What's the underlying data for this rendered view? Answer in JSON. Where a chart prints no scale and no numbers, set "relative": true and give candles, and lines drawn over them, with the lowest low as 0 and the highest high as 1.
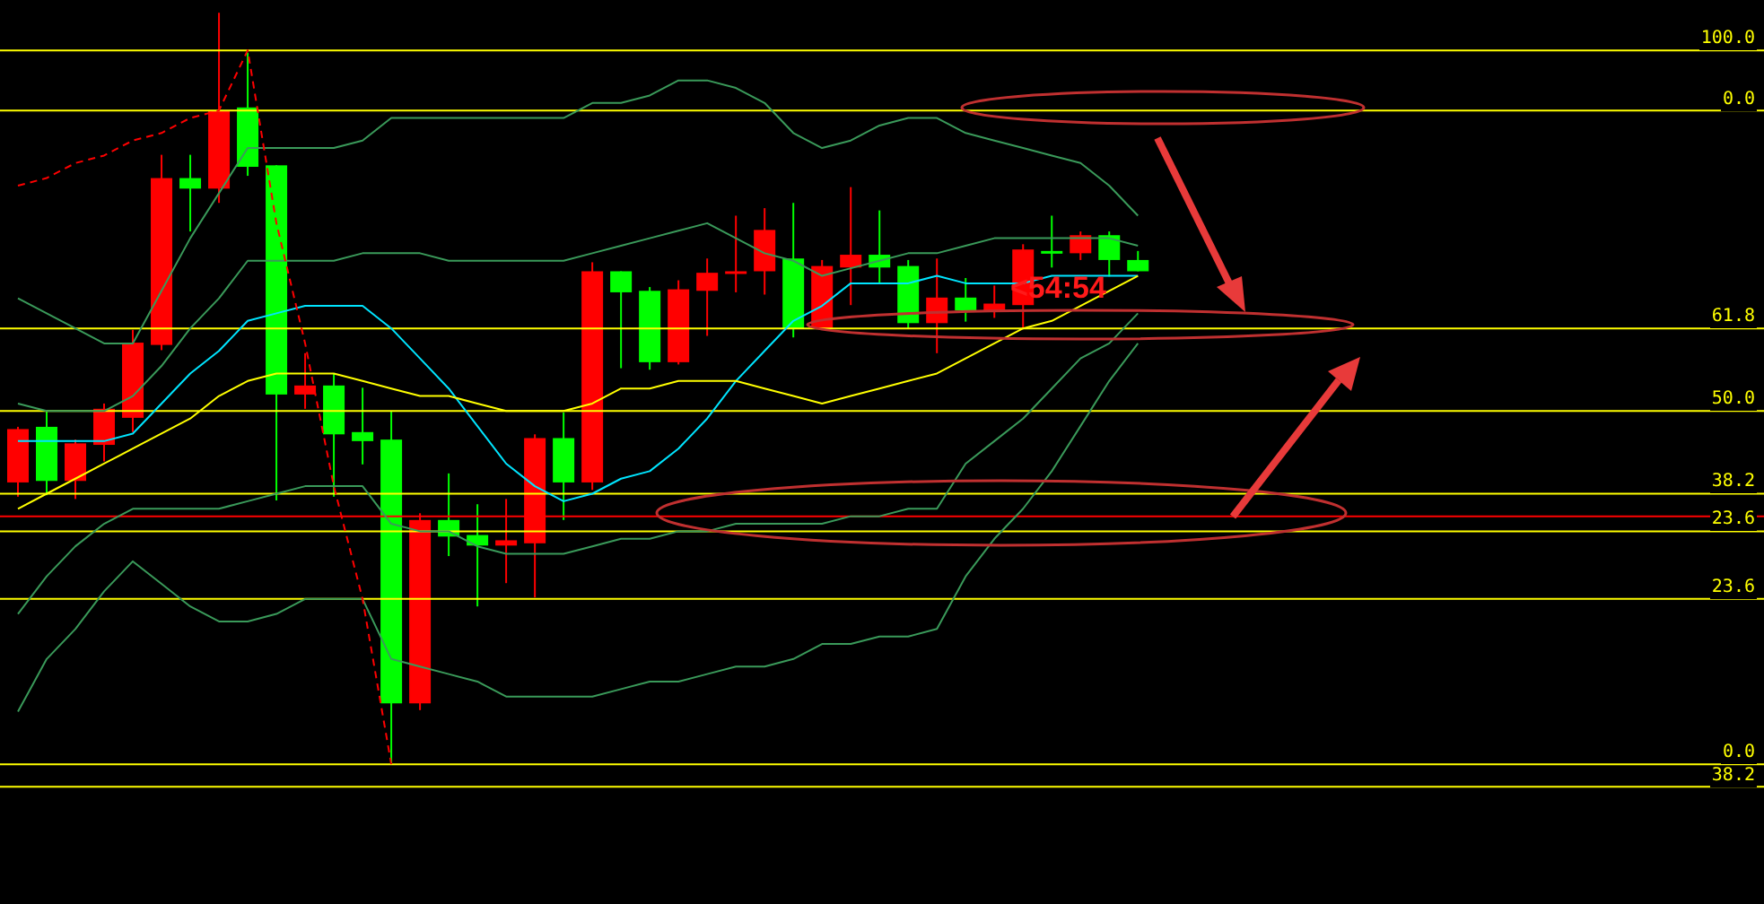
{
  "chart_data": {
    "type": "candlestick",
    "relative": true,
    "categories": [
      null,
      null,
      null,
      null,
      null,
      null,
      null,
      null,
      null,
      null,
      null,
      null,
      null,
      null,
      null,
      null,
      null,
      null,
      null,
      null,
      null,
      null,
      null,
      null,
      null,
      null,
      null,
      null,
      null,
      null,
      null,
      null,
      null,
      null,
      null,
      null,
      null,
      null,
      null,
      null
    ],
    "ohlc": [
      [
        0.375,
        0.449,
        0.356,
        0.446
      ],
      [
        0.449,
        0.47,
        0.358,
        0.377
      ],
      [
        0.377,
        0.432,
        0.353,
        0.427
      ],
      [
        0.425,
        0.48,
        0.403,
        0.473
      ],
      [
        0.461,
        0.578,
        0.442,
        0.561
      ],
      [
        0.558,
        0.811,
        0.551,
        0.78
      ],
      [
        0.78,
        0.811,
        0.709,
        0.766
      ],
      [
        0.766,
        1.0,
        0.747,
        0.869
      ],
      [
        0.874,
        0.947,
        0.783,
        0.795
      ],
      [
        0.797,
        0.797,
        0.351,
        0.492
      ],
      [
        0.492,
        0.547,
        0.473,
        0.504
      ],
      [
        0.504,
        0.52,
        0.356,
        0.439
      ],
      [
        0.442,
        0.501,
        0.399,
        0.43
      ],
      [
        0.432,
        0.47,
        0.0,
        0.081
      ],
      [
        0.081,
        0.334,
        0.072,
        0.325
      ],
      [
        0.325,
        0.387,
        0.277,
        0.303
      ],
      [
        0.305,
        0.346,
        0.21,
        0.291
      ],
      [
        0.291,
        0.353,
        0.241,
        0.298
      ],
      [
        0.294,
        0.439,
        0.222,
        0.434
      ],
      [
        0.434,
        0.468,
        0.325,
        0.375
      ],
      [
        0.375,
        0.668,
        0.365,
        0.656
      ],
      [
        0.656,
        0.656,
        0.527,
        0.628
      ],
      [
        0.63,
        0.635,
        0.525,
        0.535
      ],
      [
        0.535,
        0.644,
        0.532,
        0.632
      ],
      [
        0.63,
        0.673,
        0.57,
        0.654
      ],
      [
        0.654,
        0.73,
        0.628,
        0.656
      ],
      [
        0.656,
        0.74,
        0.625,
        0.711
      ],
      [
        0.673,
        0.747,
        0.568,
        0.58
      ],
      [
        0.58,
        0.671,
        0.58,
        0.663
      ],
      [
        0.661,
        0.768,
        0.611,
        0.678
      ],
      [
        0.678,
        0.737,
        0.64,
        0.661
      ],
      [
        0.663,
        0.671,
        0.58,
        0.587
      ],
      [
        0.587,
        0.673,
        0.547,
        0.621
      ],
      [
        0.621,
        0.647,
        0.589,
        0.604
      ],
      [
        0.604,
        0.637,
        0.594,
        0.613
      ],
      [
        0.611,
        0.692,
        0.58,
        0.685
      ],
      [
        0.683,
        0.73,
        0.661,
        0.68
      ],
      [
        0.68,
        0.709,
        0.671,
        0.704
      ],
      [
        0.704,
        0.709,
        0.649,
        0.671
      ],
      [
        0.671,
        0.683,
        0.656,
        0.656
      ]
    ],
    "colors": [
      "#ff0000",
      "#00ff00",
      "#ff0000",
      "#ff0000",
      "#ff0000",
      "#ff0000",
      "#00ff00",
      "#ff0000",
      "#00ff00",
      "#00ff00",
      "#ff0000",
      "#00ff00",
      "#00ff00",
      "#00ff00",
      "#ff0000",
      "#00ff00",
      "#00ff00",
      "#ff0000",
      "#ff0000",
      "#00ff00",
      "#ff0000",
      "#00ff00",
      "#00ff00",
      "#ff0000",
      "#ff0000",
      "#ff0000",
      "#ff0000",
      "#00ff00",
      "#ff0000",
      "#ff0000",
      "#00ff00",
      "#00ff00",
      "#ff0000",
      "#00ff00",
      "#ff0000",
      "#ff0000",
      "#00ff00",
      "#ff0000",
      "#00ff00",
      "#00ff00"
    ],
    "series": [
      {
        "type": "line",
        "color": "#3a9a5a",
        "values": [
          0.62,
          0.6,
          0.58,
          0.56,
          0.56,
          0.63,
          0.7,
          0.76,
          0.82,
          0.82,
          0.82,
          0.82,
          0.83,
          0.86,
          0.86,
          0.86,
          0.86,
          0.86,
          0.86,
          0.86,
          0.88,
          0.88,
          0.89,
          0.91,
          0.91,
          0.9,
          0.88,
          0.84,
          0.82,
          0.83,
          0.85,
          0.86,
          0.86,
          0.84,
          0.83,
          0.82,
          0.81,
          0.8,
          0.77,
          0.73
        ]
      },
      {
        "type": "line",
        "color": "#3a9a5a",
        "values": [
          0.48,
          0.47,
          0.47,
          0.47,
          0.49,
          0.53,
          0.58,
          0.62,
          0.67,
          0.67,
          0.67,
          0.67,
          0.68,
          0.68,
          0.68,
          0.67,
          0.67,
          0.67,
          0.67,
          0.67,
          0.68,
          0.69,
          0.7,
          0.71,
          0.72,
          0.7,
          0.68,
          0.67,
          0.65,
          0.66,
          0.67,
          0.68,
          0.68,
          0.69,
          0.7,
          0.7,
          0.7,
          0.7,
          0.7,
          0.69
        ]
      },
      {
        "type": "line",
        "color": "#00e5ff",
        "values": [
          0.43,
          0.43,
          0.43,
          0.43,
          0.44,
          0.48,
          0.52,
          0.55,
          0.59,
          0.6,
          0.61,
          0.61,
          0.61,
          0.58,
          0.54,
          0.5,
          0.45,
          0.4,
          0.37,
          0.35,
          0.36,
          0.38,
          0.39,
          0.42,
          0.46,
          0.51,
          0.55,
          0.59,
          0.61,
          0.64,
          0.64,
          0.64,
          0.65,
          0.64,
          0.64,
          0.64,
          0.65,
          0.65,
          0.65,
          0.65
        ]
      },
      {
        "type": "line",
        "color": "#ffff00",
        "values": [
          0.34,
          0.36,
          0.38,
          0.4,
          0.42,
          0.44,
          0.46,
          0.49,
          0.51,
          0.52,
          0.52,
          0.52,
          0.51,
          0.5,
          0.49,
          0.49,
          0.48,
          0.47,
          0.47,
          0.47,
          0.48,
          0.5,
          0.5,
          0.51,
          0.51,
          0.51,
          0.5,
          0.49,
          0.48,
          0.49,
          0.5,
          0.51,
          0.52,
          0.54,
          0.56,
          0.58,
          0.59,
          0.61,
          0.63,
          0.65
        ]
      },
      {
        "type": "line",
        "color": "#3a9a5a",
        "values": [
          0.2,
          0.25,
          0.29,
          0.32,
          0.34,
          0.34,
          0.34,
          0.34,
          0.35,
          0.36,
          0.37,
          0.37,
          0.37,
          0.32,
          0.31,
          0.31,
          0.29,
          0.28,
          0.28,
          0.28,
          0.29,
          0.3,
          0.3,
          0.31,
          0.31,
          0.32,
          0.32,
          0.32,
          0.32,
          0.33,
          0.33,
          0.34,
          0.34,
          0.4,
          0.43,
          0.46,
          0.5,
          0.54,
          0.56,
          0.6
        ]
      },
      {
        "type": "line",
        "color": "#3a9a5a",
        "values": [
          0.07,
          0.14,
          0.18,
          0.23,
          0.27,
          0.24,
          0.21,
          0.19,
          0.19,
          0.2,
          0.22,
          0.22,
          0.22,
          0.14,
          0.13,
          0.12,
          0.11,
          0.09,
          0.09,
          0.09,
          0.09,
          0.1,
          0.11,
          0.11,
          0.12,
          0.13,
          0.13,
          0.14,
          0.16,
          0.16,
          0.17,
          0.17,
          0.18,
          0.25,
          0.3,
          0.34,
          0.39,
          0.45,
          0.51,
          0.56
        ]
      },
      {
        "type": "line",
        "color": "#ff0000",
        "line_style": "dashed",
        "values": [
          0.77,
          0.78,
          0.8,
          0.81,
          0.83,
          0.84,
          0.86,
          0.87,
          0.95,
          0.72,
          0.56,
          0.37,
          0.22,
          0,
          null,
          null,
          null,
          null,
          null,
          null,
          null,
          null,
          null,
          null,
          null,
          null,
          null,
          null,
          null,
          null,
          null,
          null,
          null,
          null,
          null,
          null,
          null,
          null,
          null,
          null
        ]
      }
    ],
    "ref_lines": [
      {
        "axis": "y",
        "value": 0.95,
        "color": "#ffff00"
      },
      {
        "axis": "y",
        "value": 0.87,
        "color": "#ffff00"
      },
      {
        "axis": "y",
        "value": 0.58,
        "color": "#ffff00"
      },
      {
        "axis": "y",
        "value": 0.47,
        "color": "#ffff00"
      },
      {
        "axis": "y",
        "value": 0.36,
        "color": "#ffff00"
      },
      {
        "axis": "y",
        "value": 0.33,
        "color": "#ff0000"
      },
      {
        "axis": "y",
        "value": 0.31,
        "color": "#ffff00"
      },
      {
        "axis": "y",
        "value": 0.22,
        "color": "#ffff00"
      },
      {
        "axis": "y",
        "value": 0,
        "color": "#ffff00"
      },
      {
        "axis": "y",
        "value": -0.03,
        "color": "#ffff00"
      }
    ],
    "annotations": [
      "<54:54",
      {
        "text": "100.0",
        "y": 0.95
      },
      {
        "text": "0.0",
        "y": 0.87
      },
      {
        "text": "61.8",
        "y": 0.58
      },
      {
        "text": "50.0",
        "y": 0.47
      },
      {
        "text": "38.2",
        "y": 0.36
      },
      {
        "text": "23.6",
        "y": 0.31
      },
      {
        "text": "23.6",
        "y": 0.22
      },
      {
        "text": "0.0",
        "y": 0
      },
      {
        "text": "38.2",
        "y": -0.03
      }
    ]
  }
}
